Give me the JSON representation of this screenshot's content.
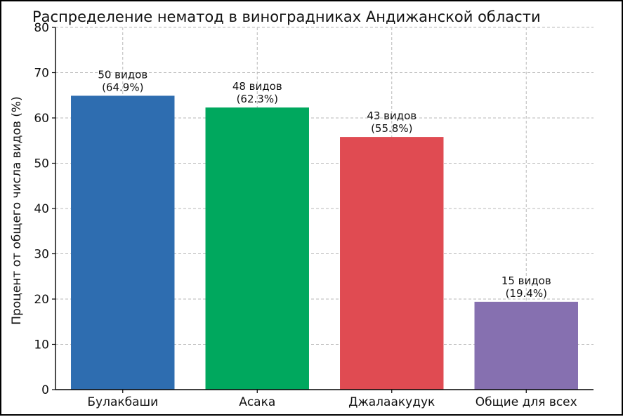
{
  "chart_data": {
    "type": "bar",
    "title": "Распределение нематод в виноградниках Андижанской области",
    "xlabel": "",
    "ylabel": "Процент от общего числа видов (%)",
    "ylim": [
      0,
      80
    ],
    "yticks": [
      0,
      10,
      20,
      30,
      40,
      50,
      60,
      70,
      80
    ],
    "grid": true,
    "categories": [
      "Булакбаши",
      "Асака",
      "Джалаакудук",
      "Общие для всех"
    ],
    "values": [
      64.9,
      62.3,
      55.8,
      19.4
    ],
    "counts_label": [
      "50 видов",
      "48 видов",
      "43 видов",
      "15 видов"
    ],
    "percent_label": [
      "(64.9%)",
      "(62.3%)",
      "(55.8%)",
      "(19.4%)"
    ],
    "colors": [
      "#2e6db0",
      "#00a85e",
      "#e04b52",
      "#8670b0"
    ]
  }
}
